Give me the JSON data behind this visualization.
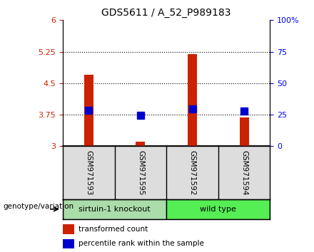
{
  "title": "GDS5611 / A_52_P989183",
  "samples": [
    "GSM971593",
    "GSM971595",
    "GSM971592",
    "GSM971594"
  ],
  "red_values": [
    4.7,
    3.1,
    5.2,
    3.68
  ],
  "blue_values": [
    3.85,
    3.74,
    3.88,
    3.83
  ],
  "ylim_left": [
    3.0,
    6.0
  ],
  "ylim_right": [
    0,
    100
  ],
  "yticks_left": [
    3.0,
    3.75,
    4.5,
    5.25,
    6.0
  ],
  "ytick_labels_left": [
    "3",
    "3.75",
    "4.5",
    "5.25",
    "6"
  ],
  "yticks_right": [
    0,
    25,
    50,
    75,
    100
  ],
  "ytick_labels_right": [
    "0",
    "25",
    "50",
    "75",
    "100%"
  ],
  "hlines": [
    3.75,
    4.5,
    5.25
  ],
  "groups": [
    {
      "label": "sirtuin-1 knockout",
      "samples": [
        0,
        1
      ],
      "color": "#aaddaa"
    },
    {
      "label": "wild type",
      "samples": [
        2,
        3
      ],
      "color": "#55ee55"
    }
  ],
  "group_label": "genotype/variation",
  "legend_red": "transformed count",
  "legend_blue": "percentile rank within the sample",
  "red_color": "#cc2200",
  "blue_color": "#0000cc",
  "blue_marker_size": 7
}
